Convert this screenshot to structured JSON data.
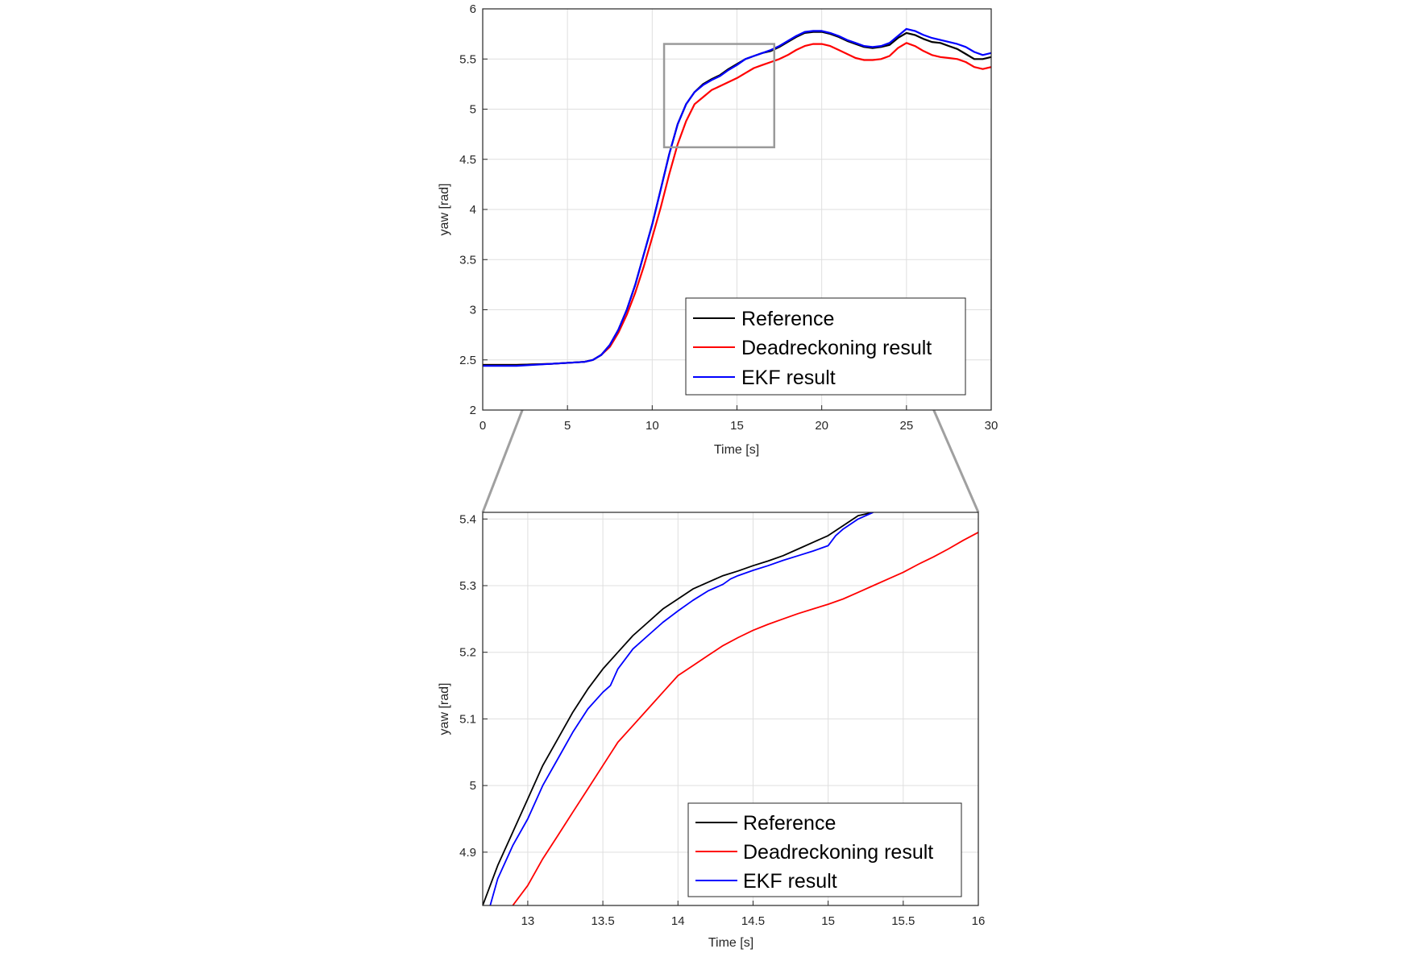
{
  "chart_data": [
    {
      "type": "line",
      "xlabel": "Time [s]",
      "ylabel": "yaw [rad]",
      "xlim": [
        0,
        30
      ],
      "ylim": [
        2,
        6
      ],
      "xticks": [
        "0",
        "5",
        "10",
        "15",
        "20",
        "25",
        "30"
      ],
      "yticks": [
        "2",
        "2.5",
        "3",
        "3.5",
        "4",
        "4.5",
        "5",
        "5.5",
        "6"
      ],
      "grid": true,
      "legend_position": "bottom-right",
      "zoom_box": {
        "x": [
          10.7,
          17.2
        ],
        "y": [
          4.62,
          5.65
        ]
      },
      "series": [
        {
          "name": "Reference",
          "color": "#000000",
          "x": [
            0,
            2,
            4,
            6,
            6.5,
            7,
            7.5,
            8,
            8.5,
            9,
            9.5,
            10,
            10.5,
            11,
            11.5,
            12,
            12.5,
            13,
            13.5,
            14,
            14.5,
            15,
            15.5,
            16,
            16.5,
            17,
            17.5,
            18,
            18.5,
            19,
            19.5,
            20,
            20.5,
            21,
            21.5,
            22,
            22.5,
            23,
            23.5,
            24,
            24.5,
            25,
            25.5,
            26,
            26.5,
            27,
            27.5,
            28,
            28.5,
            29,
            29.5,
            30
          ],
          "y": [
            2.45,
            2.45,
            2.46,
            2.48,
            2.5,
            2.55,
            2.65,
            2.8,
            3.0,
            3.25,
            3.55,
            3.85,
            4.2,
            4.55,
            4.85,
            5.05,
            5.17,
            5.25,
            5.3,
            5.34,
            5.4,
            5.45,
            5.5,
            5.53,
            5.56,
            5.58,
            5.62,
            5.67,
            5.72,
            5.76,
            5.77,
            5.77,
            5.75,
            5.72,
            5.68,
            5.65,
            5.62,
            5.61,
            5.62,
            5.64,
            5.71,
            5.76,
            5.74,
            5.7,
            5.67,
            5.66,
            5.63,
            5.6,
            5.55,
            5.5,
            5.5,
            5.52
          ]
        },
        {
          "name": "Deadreckoning result",
          "color": "#ff0000",
          "x": [
            0,
            2,
            4,
            6,
            6.5,
            7,
            7.5,
            8,
            8.5,
            9,
            9.5,
            10,
            10.5,
            11,
            11.5,
            12,
            12.5,
            13,
            13.5,
            14,
            14.5,
            15,
            15.5,
            16,
            16.5,
            17,
            17.5,
            18,
            18.5,
            19,
            19.5,
            20,
            20.5,
            21,
            21.5,
            22,
            22.5,
            23,
            23.5,
            24,
            24.5,
            25,
            25.5,
            26,
            26.5,
            27,
            27.5,
            28,
            28.5,
            29,
            29.5,
            30
          ],
          "y": [
            2.45,
            2.45,
            2.46,
            2.48,
            2.5,
            2.55,
            2.63,
            2.77,
            2.95,
            3.17,
            3.43,
            3.72,
            4.02,
            4.35,
            4.65,
            4.88,
            5.05,
            5.12,
            5.19,
            5.23,
            5.27,
            5.31,
            5.36,
            5.41,
            5.44,
            5.47,
            5.5,
            5.54,
            5.59,
            5.63,
            5.65,
            5.65,
            5.63,
            5.59,
            5.55,
            5.51,
            5.49,
            5.49,
            5.5,
            5.53,
            5.61,
            5.66,
            5.63,
            5.58,
            5.54,
            5.52,
            5.51,
            5.5,
            5.47,
            5.42,
            5.4,
            5.42
          ]
        },
        {
          "name": "EKF result",
          "color": "#0000ff",
          "x": [
            0,
            2,
            4,
            6,
            6.5,
            7,
            7.5,
            8,
            8.5,
            9,
            9.5,
            10,
            10.5,
            11,
            11.5,
            12,
            12.5,
            13,
            13.5,
            14,
            14.5,
            15,
            15.5,
            16,
            16.5,
            17,
            17.5,
            18,
            18.5,
            19,
            19.5,
            20,
            20.5,
            21,
            21.5,
            22,
            22.5,
            23,
            23.5,
            24,
            24.5,
            25,
            25.5,
            26,
            26.5,
            27,
            27.5,
            28,
            28.5,
            29,
            29.5,
            30
          ],
          "y": [
            2.44,
            2.44,
            2.46,
            2.48,
            2.5,
            2.55,
            2.65,
            2.8,
            3.0,
            3.25,
            3.55,
            3.85,
            4.2,
            4.55,
            4.85,
            5.05,
            5.17,
            5.24,
            5.29,
            5.33,
            5.39,
            5.44,
            5.5,
            5.53,
            5.56,
            5.59,
            5.63,
            5.68,
            5.73,
            5.77,
            5.78,
            5.78,
            5.76,
            5.73,
            5.69,
            5.66,
            5.63,
            5.62,
            5.63,
            5.66,
            5.73,
            5.8,
            5.78,
            5.74,
            5.71,
            5.69,
            5.67,
            5.65,
            5.62,
            5.57,
            5.54,
            5.56
          ]
        }
      ]
    },
    {
      "type": "line",
      "xlabel": "Time [s]",
      "ylabel": "yaw [rad]",
      "xlim": [
        12.7,
        16
      ],
      "ylim": [
        4.82,
        5.41
      ],
      "xticks": [
        "13",
        "13.5",
        "14",
        "14.5",
        "15",
        "15.5",
        "16"
      ],
      "yticks": [
        "4.9",
        "5",
        "5.1",
        "5.2",
        "5.3",
        "5.4"
      ],
      "grid": true,
      "legend_position": "bottom-right",
      "series": [
        {
          "name": "Reference",
          "color": "#000000",
          "x": [
            12.7,
            12.8,
            12.9,
            13.0,
            13.1,
            13.2,
            13.3,
            13.4,
            13.5,
            13.6,
            13.7,
            13.8,
            13.9,
            14.0,
            14.1,
            14.2,
            14.3,
            14.4,
            14.5,
            14.6,
            14.7,
            14.8,
            14.9,
            15.0,
            15.1,
            15.2,
            15.3
          ],
          "y": [
            4.82,
            4.88,
            4.93,
            4.98,
            5.03,
            5.07,
            5.11,
            5.145,
            5.175,
            5.2,
            5.225,
            5.245,
            5.265,
            5.28,
            5.295,
            5.305,
            5.315,
            5.322,
            5.33,
            5.337,
            5.345,
            5.355,
            5.365,
            5.375,
            5.39,
            5.405,
            5.41
          ]
        },
        {
          "name": "Deadreckoning result",
          "color": "#ff0000",
          "x": [
            12.9,
            13.0,
            13.1,
            13.2,
            13.3,
            13.4,
            13.5,
            13.6,
            13.7,
            13.8,
            13.9,
            14.0,
            14.1,
            14.2,
            14.3,
            14.4,
            14.5,
            14.6,
            14.7,
            14.8,
            14.9,
            15.0,
            15.1,
            15.2,
            15.3,
            15.4,
            15.5,
            15.6,
            15.7,
            15.8,
            15.9,
            16.0
          ],
          "y": [
            4.82,
            4.85,
            4.89,
            4.925,
            4.96,
            4.995,
            5.03,
            5.065,
            5.09,
            5.115,
            5.14,
            5.165,
            5.18,
            5.195,
            5.21,
            5.222,
            5.233,
            5.242,
            5.25,
            5.258,
            5.265,
            5.272,
            5.28,
            5.29,
            5.3,
            5.31,
            5.32,
            5.332,
            5.343,
            5.355,
            5.368,
            5.38
          ]
        },
        {
          "name": "EKF result",
          "color": "#0000ff",
          "x": [
            12.75,
            12.8,
            12.9,
            13.0,
            13.1,
            13.2,
            13.3,
            13.4,
            13.5,
            13.55,
            13.6,
            13.7,
            13.8,
            13.9,
            14.0,
            14.1,
            14.2,
            14.3,
            14.35,
            14.4,
            14.5,
            14.6,
            14.7,
            14.8,
            14.9,
            15.0,
            15.05,
            15.1,
            15.2,
            15.3
          ],
          "y": [
            4.82,
            4.86,
            4.91,
            4.95,
            5.0,
            5.04,
            5.08,
            5.115,
            5.14,
            5.15,
            5.175,
            5.205,
            5.225,
            5.245,
            5.262,
            5.278,
            5.292,
            5.302,
            5.31,
            5.315,
            5.323,
            5.33,
            5.338,
            5.345,
            5.352,
            5.36,
            5.375,
            5.385,
            5.4,
            5.41
          ]
        }
      ]
    }
  ]
}
